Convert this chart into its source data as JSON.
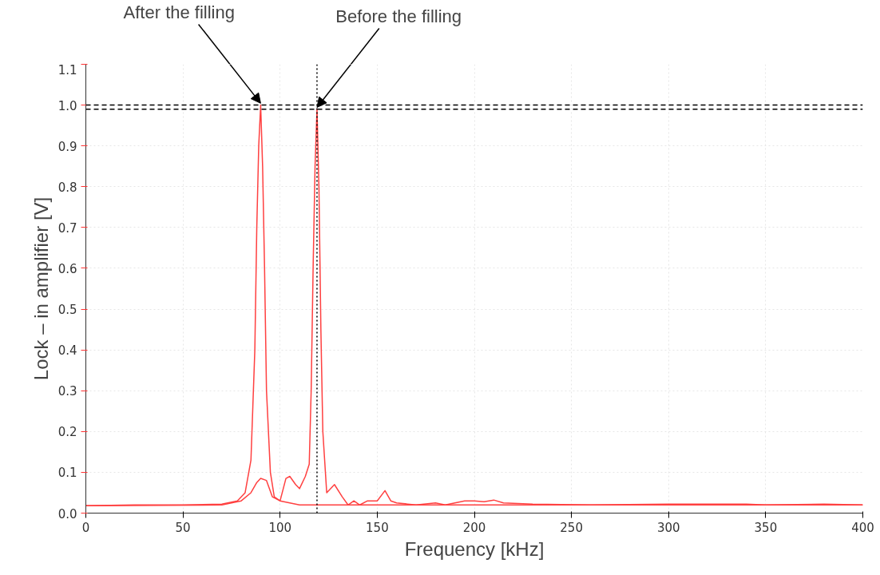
{
  "chart_data": {
    "type": "line",
    "xlabel": "Frequency [kHz]",
    "ylabel": "Lock – in amplifier [V]",
    "xlim": [
      0,
      400
    ],
    "ylim": [
      0,
      1.1
    ],
    "xticks": [
      0,
      50,
      100,
      150,
      200,
      250,
      300,
      350,
      400
    ],
    "yticks": [
      {
        "value": 0,
        "label": "0.0"
      },
      0.1,
      0.2,
      0.3,
      0.4,
      0.5,
      0.6,
      0.7,
      0.8,
      0.9,
      {
        "value": 1.0,
        "label": "1.0"
      },
      1.1
    ],
    "grid": true,
    "marker": "none",
    "line_style": "solid",
    "series": [
      {
        "color": "#ff4040",
        "x": [
          0,
          25,
          50,
          70,
          78,
          82,
          85,
          87,
          88,
          89,
          90,
          91,
          92,
          93,
          95,
          97,
          100,
          105,
          110,
          150,
          200,
          250,
          300,
          350,
          400
        ],
        "values": [
          0.018,
          0.02,
          0.02,
          0.022,
          0.03,
          0.05,
          0.13,
          0.4,
          0.7,
          0.9,
          1.0,
          0.85,
          0.6,
          0.3,
          0.1,
          0.04,
          0.03,
          0.025,
          0.02,
          0.02,
          0.02,
          0.02,
          0.02,
          0.02,
          0.02
        ]
      },
      {
        "color": "#ff4040",
        "x": [
          0,
          70,
          80,
          85,
          88,
          90,
          93,
          96,
          100,
          103,
          105,
          108,
          110,
          113,
          115,
          116,
          117,
          118,
          119,
          120,
          121,
          122,
          124,
          128,
          132,
          135,
          138,
          141,
          145,
          150,
          154,
          157,
          160,
          170,
          180,
          185,
          195,
          200,
          205,
          210,
          215,
          230,
          260,
          300,
          340,
          350,
          380,
          400
        ],
        "values": [
          0.018,
          0.02,
          0.03,
          0.05,
          0.075,
          0.085,
          0.08,
          0.04,
          0.03,
          0.085,
          0.09,
          0.07,
          0.06,
          0.09,
          0.12,
          0.3,
          0.6,
          0.85,
          0.99,
          0.8,
          0.45,
          0.2,
          0.05,
          0.07,
          0.04,
          0.02,
          0.03,
          0.02,
          0.03,
          0.03,
          0.055,
          0.03,
          0.025,
          0.02,
          0.025,
          0.02,
          0.03,
          0.03,
          0.028,
          0.032,
          0.025,
          0.022,
          0.02,
          0.022,
          0.022,
          0.02,
          0.022,
          0.02
        ]
      }
    ],
    "ref_lines": [
      {
        "axis": "y",
        "value": 1.0,
        "color": "#000000",
        "line_style": "dashed"
      },
      {
        "axis": "y",
        "value": 0.99,
        "color": "#000000",
        "line_style": "dashed"
      },
      {
        "axis": "x",
        "value": 119,
        "color": "#000000",
        "line_style": "dotted"
      }
    ],
    "annotations": [
      {
        "text": "After the filling",
        "x": 90,
        "y": 1.0
      },
      {
        "text": "Before the filling",
        "x": 119,
        "y": 0.99
      }
    ]
  }
}
